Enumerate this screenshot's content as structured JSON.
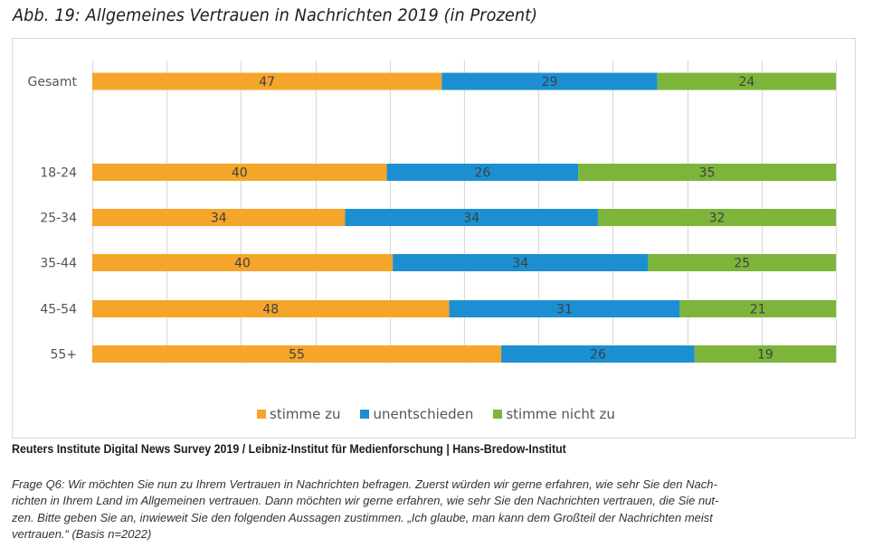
{
  "figure": {
    "title": "Abb. 19:   Allgemeines Vertrauen in Nachrichten 2019 (in Prozent)",
    "source": "Reuters Institute Digital News Survey 2019 / Leibniz-Institut für Medienforschung | Hans-Bredow-Institut",
    "note_lines": [
      "Frage Q6: Wir möchten Sie nun zu Ihrem Vertrauen in Nachrichten befragen. Zuerst würden wir gerne erfahren, wie sehr Sie den Nach-",
      "richten in Ihrem Land im Allgemeinen vertrauen. Dann möchten wir gerne erfahren, wie sehr Sie den Nachrichten vertrauen, die Sie nut-",
      "zen. Bitte geben Sie an, inwieweit Sie den folgenden Aussagen zustimmen. „Ich glaube, man kann dem Großteil der Nachrichten meist",
      "vertrauen.“ (Basis n=2022)"
    ]
  },
  "chart_data": {
    "type": "bar",
    "orientation": "horizontal",
    "stacking": "percent",
    "title": "Allgemeines Vertrauen in Nachrichten 2019 (in Prozent)",
    "xlabel": "",
    "ylabel": "",
    "xlim": [
      0,
      100
    ],
    "grid": true,
    "grid_step": 10,
    "legend_position": "bottom",
    "categories": [
      "Gesamt",
      "",
      "18-24",
      "25-34",
      "35-44",
      "45-54",
      "55+"
    ],
    "series": [
      {
        "name": "stimme zu",
        "color": "#F5A52A",
        "values": [
          47,
          null,
          40,
          34,
          40,
          48,
          55
        ]
      },
      {
        "name": "unentschieden",
        "color": "#1B8FD2",
        "values": [
          29,
          null,
          26,
          34,
          34,
          31,
          26
        ]
      },
      {
        "name": "stimme nicht zu",
        "color": "#7CB53A",
        "values": [
          24,
          null,
          35,
          32,
          25,
          21,
          19
        ]
      }
    ]
  }
}
